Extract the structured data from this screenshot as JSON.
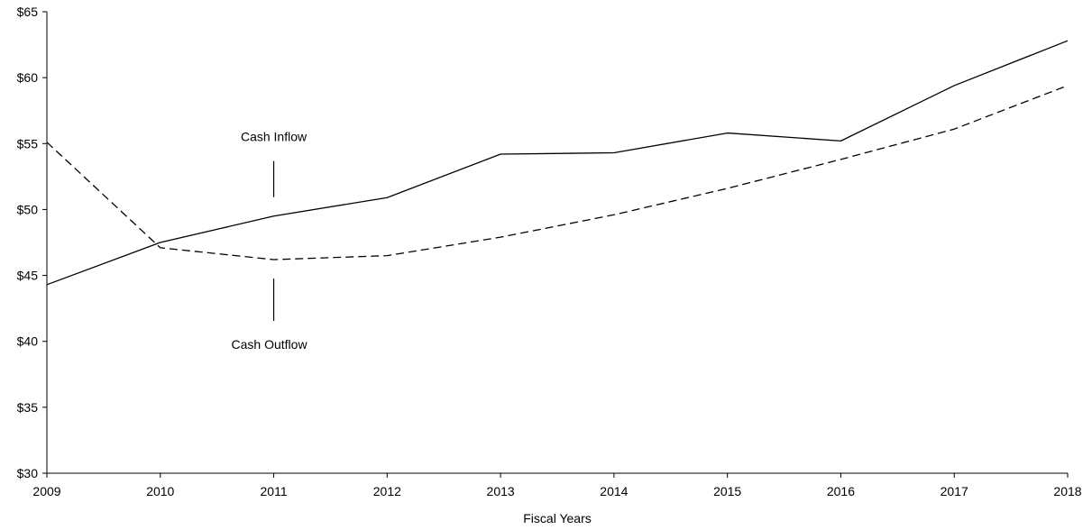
{
  "chart_data": {
    "type": "line",
    "title": "",
    "xlabel": "Fiscal Years",
    "ylabel": "",
    "categories": [
      "2009",
      "2010",
      "2011",
      "2012",
      "2013",
      "2014",
      "2015",
      "2016",
      "2017",
      "2018"
    ],
    "y_tick_labels": [
      "$30",
      "$35",
      "$40",
      "$45",
      "$50",
      "$55",
      "$60",
      "$65"
    ],
    "y_ticks": [
      30,
      35,
      40,
      45,
      50,
      55,
      60,
      65
    ],
    "ylim": [
      30,
      65
    ],
    "grid": false,
    "series": [
      {
        "name": "Cash Inflow",
        "style": "solid",
        "values": [
          44.3,
          47.5,
          49.5,
          50.9,
          54.2,
          54.3,
          55.8,
          55.2,
          59.4,
          62.8
        ]
      },
      {
        "name": "Cash Outflow",
        "style": "dashed",
        "values": [
          55.1,
          47.1,
          46.2,
          46.5,
          47.9,
          49.6,
          51.6,
          53.8,
          56.1,
          59.4
        ]
      }
    ],
    "annotations": [
      {
        "text": "Cash Inflow",
        "series": 0,
        "category": "2011",
        "placement": "above"
      },
      {
        "text": "Cash Outflow",
        "series": 1,
        "category": "2011",
        "placement": "below"
      }
    ],
    "colors": {
      "axis": "#000000",
      "line": "#000000"
    }
  }
}
